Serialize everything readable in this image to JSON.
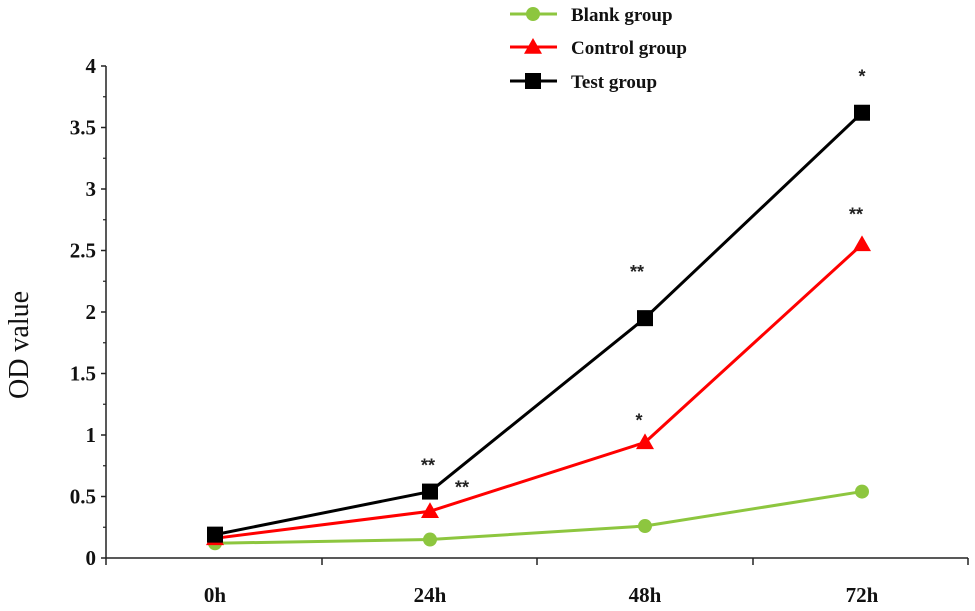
{
  "chart_data": {
    "type": "line",
    "title": "",
    "xlabel": "",
    "ylabel": "OD value",
    "categories": [
      "0h",
      "24h",
      "48h",
      "72h"
    ],
    "ylim": [
      0,
      4
    ],
    "yticks": [
      "0",
      "0.5",
      "1",
      "1.5",
      "2",
      "2.5",
      "3",
      "3.5",
      "4"
    ],
    "legend_position": "top-center",
    "grid": false,
    "series": [
      {
        "name": "Blank group",
        "color": "#8dc63f",
        "marker": "circle",
        "values": [
          0.12,
          0.15,
          0.26,
          0.54
        ]
      },
      {
        "name": "Control group",
        "color": "#ff0000",
        "marker": "triangle",
        "values": [
          0.16,
          0.38,
          0.94,
          2.55
        ]
      },
      {
        "name": "Test group",
        "color": "#000000",
        "marker": "square",
        "values": [
          0.19,
          0.54,
          1.95,
          3.62
        ]
      }
    ],
    "annotations": [
      {
        "text": "**",
        "series": "Test group",
        "category": "24h"
      },
      {
        "text": "**",
        "series": "Control group",
        "category": "24h"
      },
      {
        "text": "**",
        "series": "Test group",
        "category": "48h"
      },
      {
        "text": "*",
        "series": "Control group",
        "category": "48h"
      },
      {
        "text": "*",
        "series": "Test group",
        "category": "72h"
      },
      {
        "text": "**",
        "series": "Control group",
        "category": "72h"
      }
    ]
  }
}
